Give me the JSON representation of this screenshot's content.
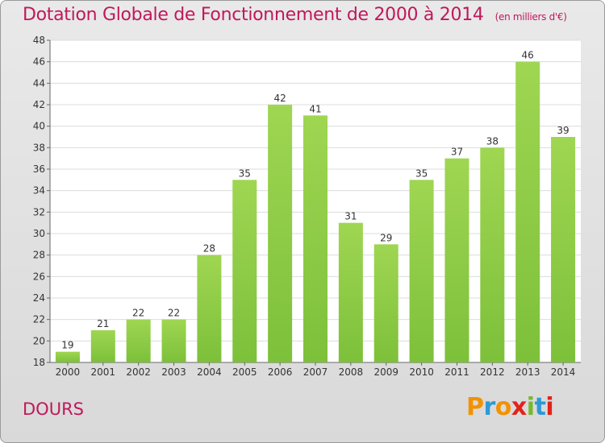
{
  "title": "Dotation Globale de Fonctionnement de 2000 à 2014",
  "subtitle": "(en milliers d'€)",
  "commune": "DOURS",
  "logo": {
    "letters": [
      "P",
      "r",
      "o",
      "x",
      "i",
      "t",
      "i"
    ],
    "colors": [
      "#f39200",
      "#2d9ad6",
      "#f39200",
      "#e2231a",
      "#7ab730",
      "#2d9ad6",
      "#e2231a"
    ]
  },
  "colors": {
    "bar": "#7dc03a",
    "bar_light": "#9fd652",
    "accent": "#c0185b"
  },
  "chart_data": {
    "type": "bar",
    "categories": [
      "2000",
      "2001",
      "2002",
      "2003",
      "2004",
      "2005",
      "2006",
      "2007",
      "2008",
      "2009",
      "2010",
      "2011",
      "2012",
      "2013",
      "2014"
    ],
    "values": [
      19,
      21,
      22,
      22,
      28,
      35,
      42,
      41,
      31,
      29,
      35,
      37,
      38,
      46,
      39
    ],
    "title": "Dotation Globale de Fonctionnement de 2000 à 2014",
    "subtitle": "(en milliers d'€)",
    "xlabel": "",
    "ylabel": "",
    "ylim": [
      18,
      48
    ],
    "yticks": [
      18,
      20,
      22,
      24,
      26,
      28,
      30,
      32,
      34,
      36,
      38,
      40,
      42,
      44,
      46,
      48
    ],
    "grid": true,
    "legend": "none"
  }
}
